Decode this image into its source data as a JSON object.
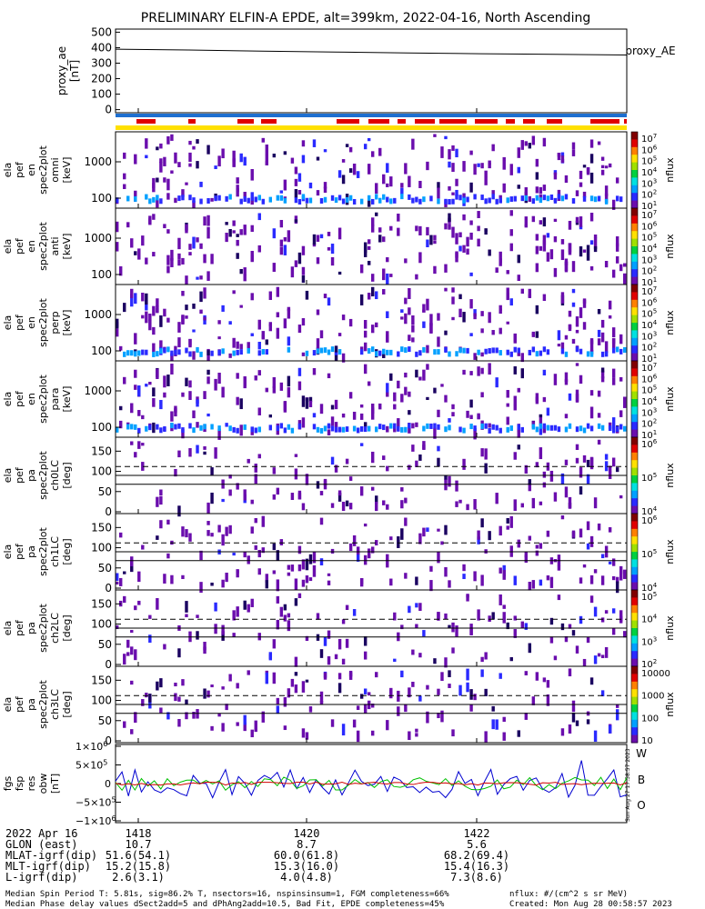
{
  "chart_data": {
    "type": "heatmap",
    "title": "PRELIMINARY ELFIN-A EPDE, alt=399km, 2022-04-16, North Ascending",
    "x_ticks": [
      "1418",
      "1420",
      "1422"
    ],
    "proxy": {
      "ylabel": [
        "proxy_ae",
        "[nT]"
      ],
      "yticks": [
        "500",
        "400",
        "300",
        "200",
        "100",
        "0"
      ],
      "ylim": [
        -20,
        520
      ],
      "legend": "proxy_AE",
      "values": [
        390,
        385,
        378,
        372,
        366,
        361,
        357,
        353
      ]
    },
    "spectra": [
      {
        "ylabel": [
          "ela",
          "pef",
          "en",
          "spec2plot",
          "omni",
          "[keV]"
        ],
        "yticks": [
          "1000",
          "100"
        ],
        "cbar_ticks": [
          "10^7",
          "10^6",
          "10^5",
          "10^4",
          "10^3",
          "10^2",
          "10^1"
        ],
        "cbar_label": "nflux"
      },
      {
        "ylabel": [
          "ela",
          "pef",
          "en",
          "spec2plot",
          "anti",
          "[keV]"
        ],
        "yticks": [
          "1000",
          "100"
        ],
        "cbar_ticks": [
          "10^7",
          "10^6",
          "10^5",
          "10^4",
          "10^3",
          "10^2",
          "10^1"
        ],
        "cbar_label": "nflux"
      },
      {
        "ylabel": [
          "ela",
          "pef",
          "en",
          "spec2plot",
          "perp",
          "[keV]"
        ],
        "yticks": [
          "1000",
          "100"
        ],
        "cbar_ticks": [
          "10^7",
          "10^6",
          "10^5",
          "10^4",
          "10^3",
          "10^2",
          "10^1"
        ],
        "cbar_label": "nflux"
      },
      {
        "ylabel": [
          "ela",
          "pef",
          "en",
          "spec2plot",
          "para",
          "[keV]"
        ],
        "yticks": [
          "1000",
          "100"
        ],
        "cbar_ticks": [
          "10^7",
          "10^6",
          "10^5",
          "10^4",
          "10^3",
          "10^2",
          "10^1"
        ],
        "cbar_label": "nflux"
      }
    ],
    "pitch": [
      {
        "ylabel": [
          "ela",
          "pef",
          "pa",
          "spec2plot",
          "ch0LC",
          "[deg]"
        ],
        "yticks": [
          "150",
          "100",
          "50",
          "0"
        ],
        "cbar_ticks": [
          "10^6",
          "10^5",
          "10^4"
        ],
        "cbar_label": "nflux"
      },
      {
        "ylabel": [
          "ela",
          "pef",
          "pa",
          "spec2plot",
          "ch1LC",
          "[deg]"
        ],
        "yticks": [
          "150",
          "100",
          "50",
          "0"
        ],
        "cbar_ticks": [
          "10^6",
          "10^5",
          "10^4"
        ],
        "cbar_label": "nflux"
      },
      {
        "ylabel": [
          "ela",
          "pef",
          "pa",
          "spec2plot",
          "ch2LC",
          "[deg]"
        ],
        "yticks": [
          "150",
          "100",
          "50",
          "0"
        ],
        "cbar_ticks": [
          "10^5",
          "10^4",
          "10^3",
          "10^2"
        ],
        "cbar_label": "nflux"
      },
      {
        "ylabel": [
          "ela",
          "pef",
          "pa",
          "spec2plot",
          "ch3LC",
          "[deg]"
        ],
        "yticks": [
          "150",
          "100",
          "50",
          "0"
        ],
        "cbar_ticks": [
          "10000",
          "1000",
          "100",
          "10"
        ],
        "cbar_label": "nflux"
      }
    ],
    "fgs": {
      "ylabel": [
        "fgs",
        "fsp",
        "res",
        "obw",
        "[nT]"
      ],
      "yticks": [
        "1×10^6",
        "5×10^5",
        "0",
        "−5×10^5",
        "−1×10^6"
      ],
      "ylim": [
        -1000000,
        1000000
      ],
      "legend": [
        "W",
        "B",
        "O"
      ],
      "colors": [
        "#d00000",
        "#00c000",
        "#0000d0"
      ]
    },
    "cbar_colors": [
      "#ffffff",
      "#6a0dad",
      "#2a2aff",
      "#00a0ff",
      "#00e0e0",
      "#00d040",
      "#a0e000",
      "#ffe000",
      "#ff8000",
      "#e00000",
      "#800000"
    ]
  },
  "footer": {
    "rows": [
      {
        "label": "2022 Apr 16",
        "v1": "1418",
        "v2": "1420",
        "v3": "1422"
      },
      {
        "label": "GLON (east)",
        "v1": "10.7",
        "v2": "8.7",
        "v3": "5.6"
      },
      {
        "label": "MLAT-igrf(dip)",
        "v1": "51.6(54.1)",
        "v2": "60.0(61.8)",
        "v3": "68.2(69.4)"
      },
      {
        "label": "MLT-igrf(dip)",
        "v1": "15.2(15.8)",
        "v2": "15.3(16.0)",
        "v3": "15.4(16.3)"
      },
      {
        "label": "L-igrf(dip)",
        "v1": "2.6(3.1)",
        "v2": "4.0(4.8)",
        "v3": "7.3(8.6)"
      }
    ],
    "note1": "Median Spin Period T: 5.81s, sig=86.2% T, nsectors=16, nspinsinsum=1, FGM completeness=66%",
    "note2": "Median Phase delay values dSect2add=5 and dPhAng2add=10.5, Bad Fit, EPDE completeness=45%",
    "nflux_units": "nflux: #/(cm^2 s sr MeV)",
    "created": "Created: Mon Aug 28 00:58:57 2023",
    "side_stamp": "Sun Aug 27 17:58:57 2023"
  }
}
